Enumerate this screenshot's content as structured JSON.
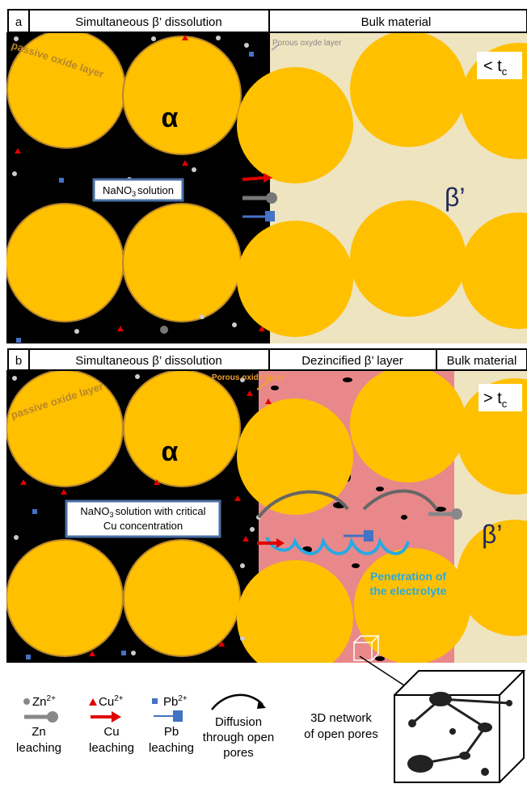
{
  "panel_a": {
    "label": "a",
    "headers": [
      "Simultaneous β’ dissolution",
      "Bulk material"
    ],
    "passive_layer": "passive oxide layer",
    "alpha": "α",
    "solution": {
      "pre": "NaNO",
      "sub": "3",
      "post": "solution"
    },
    "porous_layer": "Porous oxyde layer",
    "time": {
      "pre": "< t",
      "sub": "c"
    },
    "beta": "β’"
  },
  "panel_b": {
    "label": "b",
    "headers": [
      "Simultaneous β’ dissolution",
      "Dezincified β’ layer",
      "Bulk material"
    ],
    "passive_layer": "passive oxide layer",
    "alpha": "α",
    "solution": {
      "pre": "NaNO",
      "sub": "3",
      "post": "solution with critical",
      "line2": "Cu concentration"
    },
    "porous_layer": "Porous oxide layer",
    "time": {
      "pre": "> t",
      "sub": "c"
    },
    "penetration": [
      "Penetration of",
      "the electrolyte"
    ],
    "beta": "β’"
  },
  "legend": {
    "zn": {
      "ion": "Zn",
      "charge": "2+",
      "label": [
        "Zn",
        "leaching"
      ]
    },
    "cu": {
      "ion": "Cu",
      "charge": "2+",
      "label": [
        "Cu",
        "leaching"
      ]
    },
    "pb": {
      "ion": "Pb",
      "charge": "2+",
      "label": [
        "Pb",
        "leaching"
      ]
    },
    "diffusion": [
      "Diffusion",
      "through open",
      "pores"
    ],
    "network": [
      "3D network",
      "of open pores"
    ]
  }
}
